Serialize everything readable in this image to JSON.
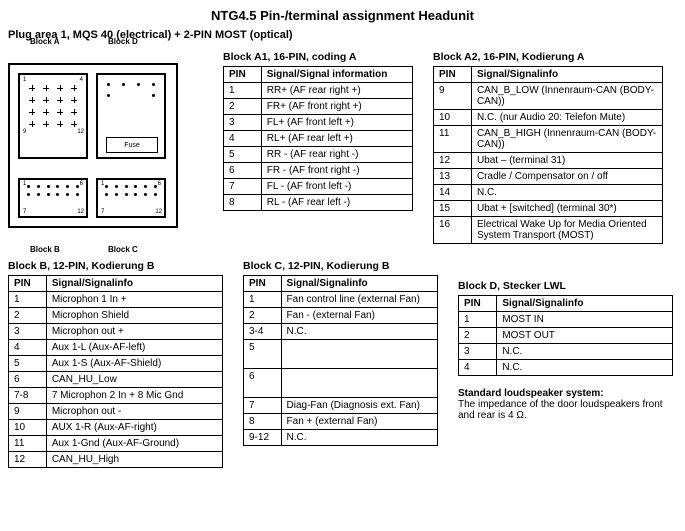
{
  "title": "NTG4.5 Pin-/terminal assignment Headunit",
  "subtitle": "Plug area 1, MQS 40 (electrical) + 2-PIN MOST (optical)",
  "connector": {
    "labels": {
      "a": "Block A",
      "b": "Block B",
      "c": "Block C",
      "d": "Block D"
    },
    "fuse": "Fuse"
  },
  "tables": {
    "a1": {
      "title": "Block A1, 16-PIN, coding A",
      "headers": [
        "PIN",
        "Signal/Signal information"
      ],
      "rows": [
        [
          "1",
          "RR+ (AF rear right +)"
        ],
        [
          "2",
          "FR+ (AF front right +)"
        ],
        [
          "3",
          "FL+ (AF front left +)"
        ],
        [
          "4",
          "RL+ (AF rear left +)"
        ],
        [
          "5",
          "RR - (AF rear right -)"
        ],
        [
          "6",
          "FR - (AF front right -)"
        ],
        [
          "7",
          "FL - (AF front left -)"
        ],
        [
          "8",
          "RL - (AF rear left -)"
        ]
      ]
    },
    "a2": {
      "title": "Block A2, 16-PIN, Kodierung A",
      "headers": [
        "PIN",
        "Signal/Signalinfo"
      ],
      "rows": [
        [
          "9",
          "CAN_B_LOW (Innenraum-CAN (BODY-CAN))"
        ],
        [
          "10",
          "N.C. (nur Audio 20: Telefon Mute)"
        ],
        [
          "11",
          "CAN_B_HIGH (Innenraum-CAN (BODY-CAN))"
        ],
        [
          "12",
          "Ubat – (terminal 31)"
        ],
        [
          "13",
          "Cradle / Compensator on / off"
        ],
        [
          "14",
          "N.C."
        ],
        [
          "15",
          "Ubat + [switched] (terminal 30*)"
        ],
        [
          "16",
          "Electrical Wake Up for Media Oriented System Transport (MOST)"
        ]
      ]
    },
    "b": {
      "title": "Block B, 12-PIN, Kodierung B",
      "headers": [
        "PIN",
        "Signal/Signalinfo"
      ],
      "rows": [
        [
          "1",
          "Microphon 1 In +"
        ],
        [
          "2",
          "Microphon Shield"
        ],
        [
          "3",
          "Microphon out +"
        ],
        [
          "4",
          "Aux 1-L (Aux-AF-left)"
        ],
        [
          "5",
          "Aux 1-S (Aux-AF-Shield)"
        ],
        [
          "6",
          "CAN_HU_Low"
        ],
        [
          "7-8",
          "7 Microphon 2 In +       8 Mic Gnd"
        ],
        [
          "9",
          "Microphon out -"
        ],
        [
          "10",
          "AUX 1-R (Aux-AF-right)"
        ],
        [
          "11",
          "Aux 1-Gnd (Aux-AF-Ground)"
        ],
        [
          "12",
          "CAN_HU_High"
        ]
      ]
    },
    "c": {
      "title": "Block C, 12-PIN, Kodierung B",
      "headers": [
        "PIN",
        "Signal/Signalinfo"
      ],
      "rows": [
        [
          "1",
          "Fan control line (external Fan)"
        ],
        [
          "2",
          "Fan - (external Fan)"
        ],
        [
          "3-4",
          "N.C."
        ],
        [
          "5",
          " "
        ],
        [
          "6",
          " "
        ],
        [
          "7",
          "Diag-Fan (Diagnosis ext. Fan)"
        ],
        [
          "8",
          "Fan + (external Fan)"
        ],
        [
          "9-12",
          "N.C."
        ]
      ]
    },
    "d": {
      "title": "Block D, Stecker LWL",
      "headers": [
        "PIN",
        "Signal/Signalinfo"
      ],
      "rows": [
        [
          "1",
          "MOST IN"
        ],
        [
          "2",
          "MOST OUT"
        ],
        [
          "3",
          "N.C."
        ],
        [
          "4",
          "N.C."
        ]
      ]
    }
  },
  "footer": {
    "heading": "Standard loudspeaker system:",
    "text": "The impedance of the door loudspeakers front and rear is 4 Ω."
  },
  "colors": {
    "border": "#000000",
    "bg": "#ffffff",
    "text": "#000000"
  }
}
